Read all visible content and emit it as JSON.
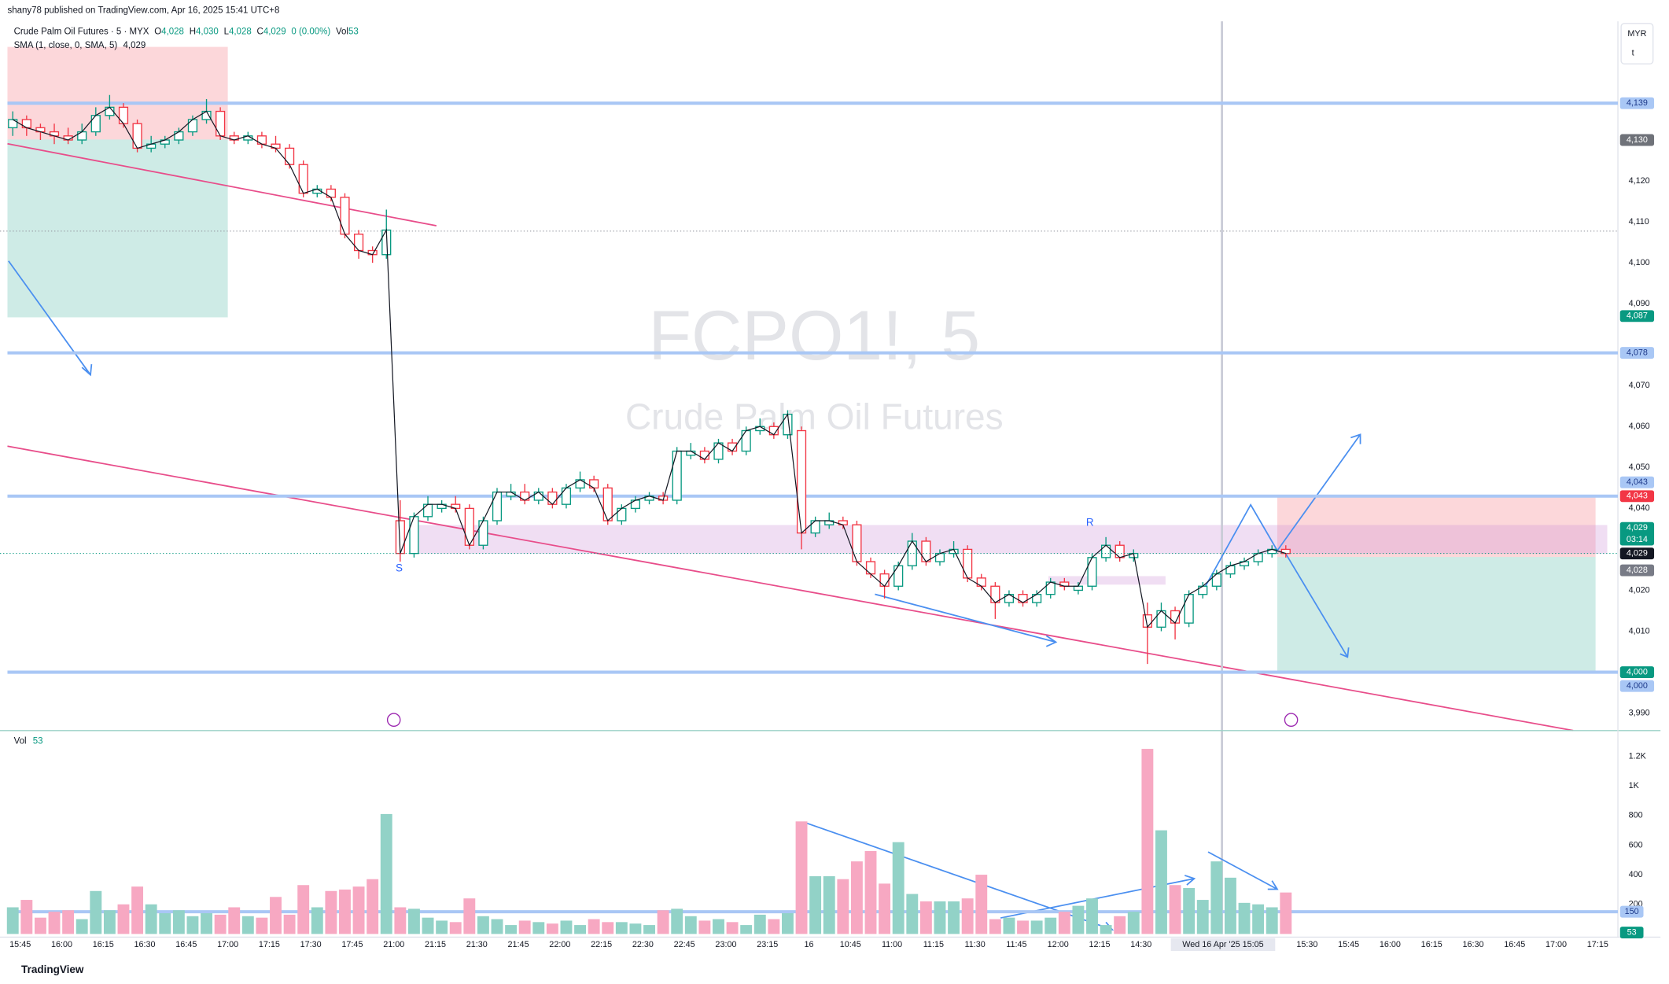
{
  "chart_data": {
    "type": "candlestick",
    "header": "shany78 published on TradingView.com, Apr 16, 2025 15:41 UTC+8",
    "legend": {
      "symbol": "Crude Palm Oil Futures · 5 · MYX",
      "ohlc": [
        [
          "O",
          "4,028"
        ],
        [
          "H",
          "4,030"
        ],
        [
          "L",
          "4,028"
        ],
        [
          "C",
          "4,029"
        ]
      ],
      "change": "0 (0.00%)",
      "vol_label": "Vol",
      "vol_value": "53",
      "sma": "SMA (1, close, 0, SMA, 5)",
      "sma_value": "4,029"
    },
    "watermark": "FCPO1!, 5",
    "watermark_subtitle": "Crude Palm Oil Futures",
    "currency": "MYR",
    "unit": "t",
    "volume_title": "Vol",
    "volume_value": "53",
    "annotations": [
      "S",
      "R"
    ],
    "footer": "TradingView",
    "crosshair_label": "Wed 16 Apr '25 15:05",
    "countdown": "03:14",
    "up_color": "#089981",
    "down_color": "#f23645",
    "up_volume_color": "#92d2c7",
    "down_volume_color": "#f7a8c2",
    "ylim": [
      3986,
      4159
    ],
    "yticks": [
      {
        "value": 3990,
        "label": "3,990"
      },
      {
        "value": 4010,
        "label": "4,010"
      },
      {
        "value": 4020,
        "label": "4,020"
      },
      {
        "value": 4040,
        "label": "4,040"
      },
      {
        "value": 4050,
        "label": "4,050"
      },
      {
        "value": 4060,
        "label": "4,060"
      },
      {
        "value": 4070,
        "label": "4,070"
      },
      {
        "value": 4090,
        "label": "4,090"
      },
      {
        "value": 4100,
        "label": "4,100"
      },
      {
        "value": 4110,
        "label": "4,110"
      },
      {
        "value": 4120,
        "label": "4,120"
      }
    ],
    "price_labels": [
      {
        "value": 4139,
        "label": "4,139",
        "color": "#a9c7f5",
        "line": true
      },
      {
        "value": 4130,
        "label": "4,130",
        "color": "#6f7279"
      },
      {
        "value": 4087,
        "label": "4,087",
        "color": "#089981"
      },
      {
        "value": 4078,
        "label": "4,078",
        "color": "#a9c7f5",
        "line": true
      },
      {
        "value": 4043,
        "label": "4,043",
        "color": "#a9c7f5",
        "line": true
      },
      {
        "value": 4043,
        "label": "4,043",
        "color": "#f23645"
      },
      {
        "value": 4029,
        "label": "4,029",
        "color": "#089981"
      },
      {
        "value": 4029,
        "label": "4,029",
        "color": "#131722"
      },
      {
        "value": 4028,
        "label": "4,028",
        "color": "#787b86"
      },
      {
        "value": 4000,
        "label": "4,000",
        "color": "#089981"
      },
      {
        "value": 4000,
        "label": "4,000",
        "color": "#a9c7f5",
        "line": true
      }
    ],
    "time_labels": [
      "15:45",
      "16:00",
      "16:15",
      "16:30",
      "16:45",
      "17:00",
      "17:15",
      "17:30",
      "17:45",
      "21:00",
      "21:15",
      "21:30",
      "21:45",
      "22:00",
      "22:15",
      "22:30",
      "22:45",
      "23:00",
      "23:15",
      "16",
      "10:45",
      "11:00",
      "11:15",
      "11:30",
      "11:45",
      "12:00",
      "12:15",
      "14:30",
      null,
      null,
      null,
      "15:30",
      "15:45",
      "16:00",
      "16:15",
      "16:30",
      "16:45",
      "17:00",
      "17:15"
    ],
    "candles": [
      [
        4133,
        4137,
        4131,
        4135
      ],
      [
        4135,
        4136,
        4131,
        4133
      ],
      [
        4133,
        4134,
        4130,
        4132
      ],
      [
        4132,
        4134,
        4129,
        4131
      ],
      [
        4131,
        4133,
        4129,
        4130
      ],
      [
        4130,
        4134,
        4129,
        4132
      ],
      [
        4132,
        4138,
        4131,
        4136
      ],
      [
        4136,
        4141,
        4135,
        4138
      ],
      [
        4138,
        4139,
        4133,
        4134
      ],
      [
        4134,
        4135,
        4127,
        4128
      ],
      [
        4128,
        4131,
        4127,
        4129
      ],
      [
        4129,
        4131,
        4128,
        4130
      ],
      [
        4130,
        4133,
        4129,
        4132
      ],
      [
        4132,
        4136,
        4131,
        4135
      ],
      [
        4135,
        4140,
        4134,
        4137
      ],
      [
        4137,
        4138,
        4130,
        4131
      ],
      [
        4131,
        4132,
        4129,
        4130
      ],
      [
        4130,
        4132,
        4129,
        4131
      ],
      [
        4131,
        4132,
        4128,
        4129
      ],
      [
        4129,
        4131,
        4127,
        4128
      ],
      [
        4128,
        4129,
        4123,
        4124
      ],
      [
        4124,
        4125,
        4116,
        4117
      ],
      [
        4117,
        4119,
        4116,
        4118
      ],
      [
        4118,
        4119,
        4115,
        4116
      ],
      [
        4116,
        4117,
        4106,
        4107
      ],
      [
        4107,
        4108,
        4101,
        4103
      ],
      [
        4103,
        4104,
        4100,
        4102
      ],
      [
        4102,
        4113,
        4101,
        4108
      ],
      [
        4037,
        4042,
        4027,
        4029
      ],
      [
        4029,
        4039,
        4028,
        4038
      ],
      [
        4038,
        4043,
        4037,
        4041
      ],
      [
        4040,
        4042,
        4039,
        4041
      ],
      [
        4041,
        4043,
        4039,
        4040
      ],
      [
        4040,
        4041,
        4030,
        4031
      ],
      [
        4031,
        4038,
        4030,
        4037
      ],
      [
        4037,
        4045,
        4036,
        4044
      ],
      [
        4043,
        4046,
        4042,
        4044
      ],
      [
        4044,
        4046,
        4041,
        4042
      ],
      [
        4042,
        4045,
        4041,
        4044
      ],
      [
        4044,
        4045,
        4040,
        4041
      ],
      [
        4041,
        4046,
        4040,
        4045
      ],
      [
        4045,
        4049,
        4044,
        4047
      ],
      [
        4047,
        4048,
        4044,
        4045
      ],
      [
        4045,
        4046,
        4036,
        4037
      ],
      [
        4037,
        4041,
        4036,
        4040
      ],
      [
        4040,
        4043,
        4039,
        4042
      ],
      [
        4042,
        4044,
        4041,
        4043
      ],
      [
        4043,
        4044,
        4041,
        4042
      ],
      [
        4042,
        4055,
        4041,
        4054
      ],
      [
        4053,
        4056,
        4052,
        4054
      ],
      [
        4054,
        4055,
        4051,
        4052
      ],
      [
        4052,
        4057,
        4051,
        4056
      ],
      [
        4056,
        4057,
        4053,
        4054
      ],
      [
        4054,
        4060,
        4053,
        4059
      ],
      [
        4059,
        4062,
        4058,
        4060
      ],
      [
        4060,
        4061,
        4057,
        4058
      ],
      [
        4058,
        4064,
        4057,
        4063
      ],
      [
        4059,
        4060,
        4030,
        4034
      ],
      [
        4034,
        4038,
        4033,
        4037
      ],
      [
        4036,
        4039,
        4035,
        4037
      ],
      [
        4037,
        4038,
        4035,
        4036
      ],
      [
        4036,
        4037,
        4026,
        4027
      ],
      [
        4027,
        4028,
        4023,
        4024
      ],
      [
        4024,
        4025,
        4018,
        4021
      ],
      [
        4021,
        4027,
        4020,
        4026
      ],
      [
        4026,
        4034,
        4025,
        4032
      ],
      [
        4032,
        4033,
        4026,
        4027
      ],
      [
        4027,
        4030,
        4026,
        4029
      ],
      [
        4029,
        4032,
        4028,
        4030
      ],
      [
        4030,
        4031,
        4022,
        4023
      ],
      [
        4023,
        4024,
        4020,
        4021
      ],
      [
        4021,
        4022,
        4013,
        4017
      ],
      [
        4017,
        4020,
        4016,
        4019
      ],
      [
        4019,
        4020,
        4016,
        4017
      ],
      [
        4017,
        4020,
        4016,
        4019
      ],
      [
        4019,
        4023,
        4018,
        4022
      ],
      [
        4022,
        4023,
        4020,
        4021
      ],
      [
        4020,
        4022,
        4019,
        4021
      ],
      [
        4021,
        4029,
        4020,
        4028
      ],
      [
        4028,
        4033,
        4027,
        4031
      ],
      [
        4031,
        4032,
        4027,
        4028
      ],
      [
        4028,
        4030,
        4027,
        4029
      ],
      [
        4014,
        4017,
        4002,
        4011
      ],
      [
        4011,
        4017,
        4010,
        4015
      ],
      [
        4015,
        4016,
        4008,
        4012
      ],
      [
        4012,
        4020,
        4011,
        4019
      ],
      [
        4019,
        4022,
        4018,
        4021
      ],
      [
        4021,
        4025,
        4020,
        4024
      ],
      [
        4024,
        4027,
        4023,
        4026
      ],
      [
        4026,
        4028,
        4025,
        4027
      ],
      [
        4027,
        4030,
        4026,
        4029
      ],
      [
        4029,
        4031,
        4028,
        4030
      ],
      [
        4030,
        4031,
        4028,
        4029
      ]
    ],
    "volume": [
      180,
      230,
      110,
      150,
      160,
      100,
      290,
      160,
      200,
      320,
      200,
      140,
      160,
      120,
      140,
      130,
      180,
      120,
      110,
      250,
      130,
      330,
      180,
      290,
      300,
      320,
      370,
      810,
      180,
      170,
      110,
      90,
      80,
      240,
      120,
      100,
      60,
      90,
      80,
      70,
      90,
      60,
      100,
      80,
      80,
      70,
      60,
      160,
      170,
      120,
      90,
      100,
      80,
      60,
      130,
      100,
      140,
      760,
      390,
      390,
      370,
      490,
      560,
      340,
      620,
      270,
      220,
      220,
      220,
      240,
      400,
      100,
      110,
      90,
      90,
      110,
      150,
      190,
      240,
      60,
      120,
      150,
      1250,
      700,
      330,
      310,
      230,
      490,
      380,
      210,
      200,
      180,
      280
    ],
    "vlim": [
      0,
      1345
    ],
    "vticks": [
      {
        "value": 200,
        "label": "200"
      },
      {
        "value": 400,
        "label": "400"
      },
      {
        "value": 600,
        "label": "600"
      },
      {
        "value": 800,
        "label": "800"
      },
      {
        "value": 1000,
        "label": "1K"
      },
      {
        "value": 1200,
        "label": "1.2K"
      }
    ],
    "volume_labels": [
      {
        "value": 150,
        "label": "150",
        "color": "#a9c7f5",
        "line": true
      },
      {
        "value": 53,
        "label": "53",
        "color": "#089981"
      }
    ]
  }
}
